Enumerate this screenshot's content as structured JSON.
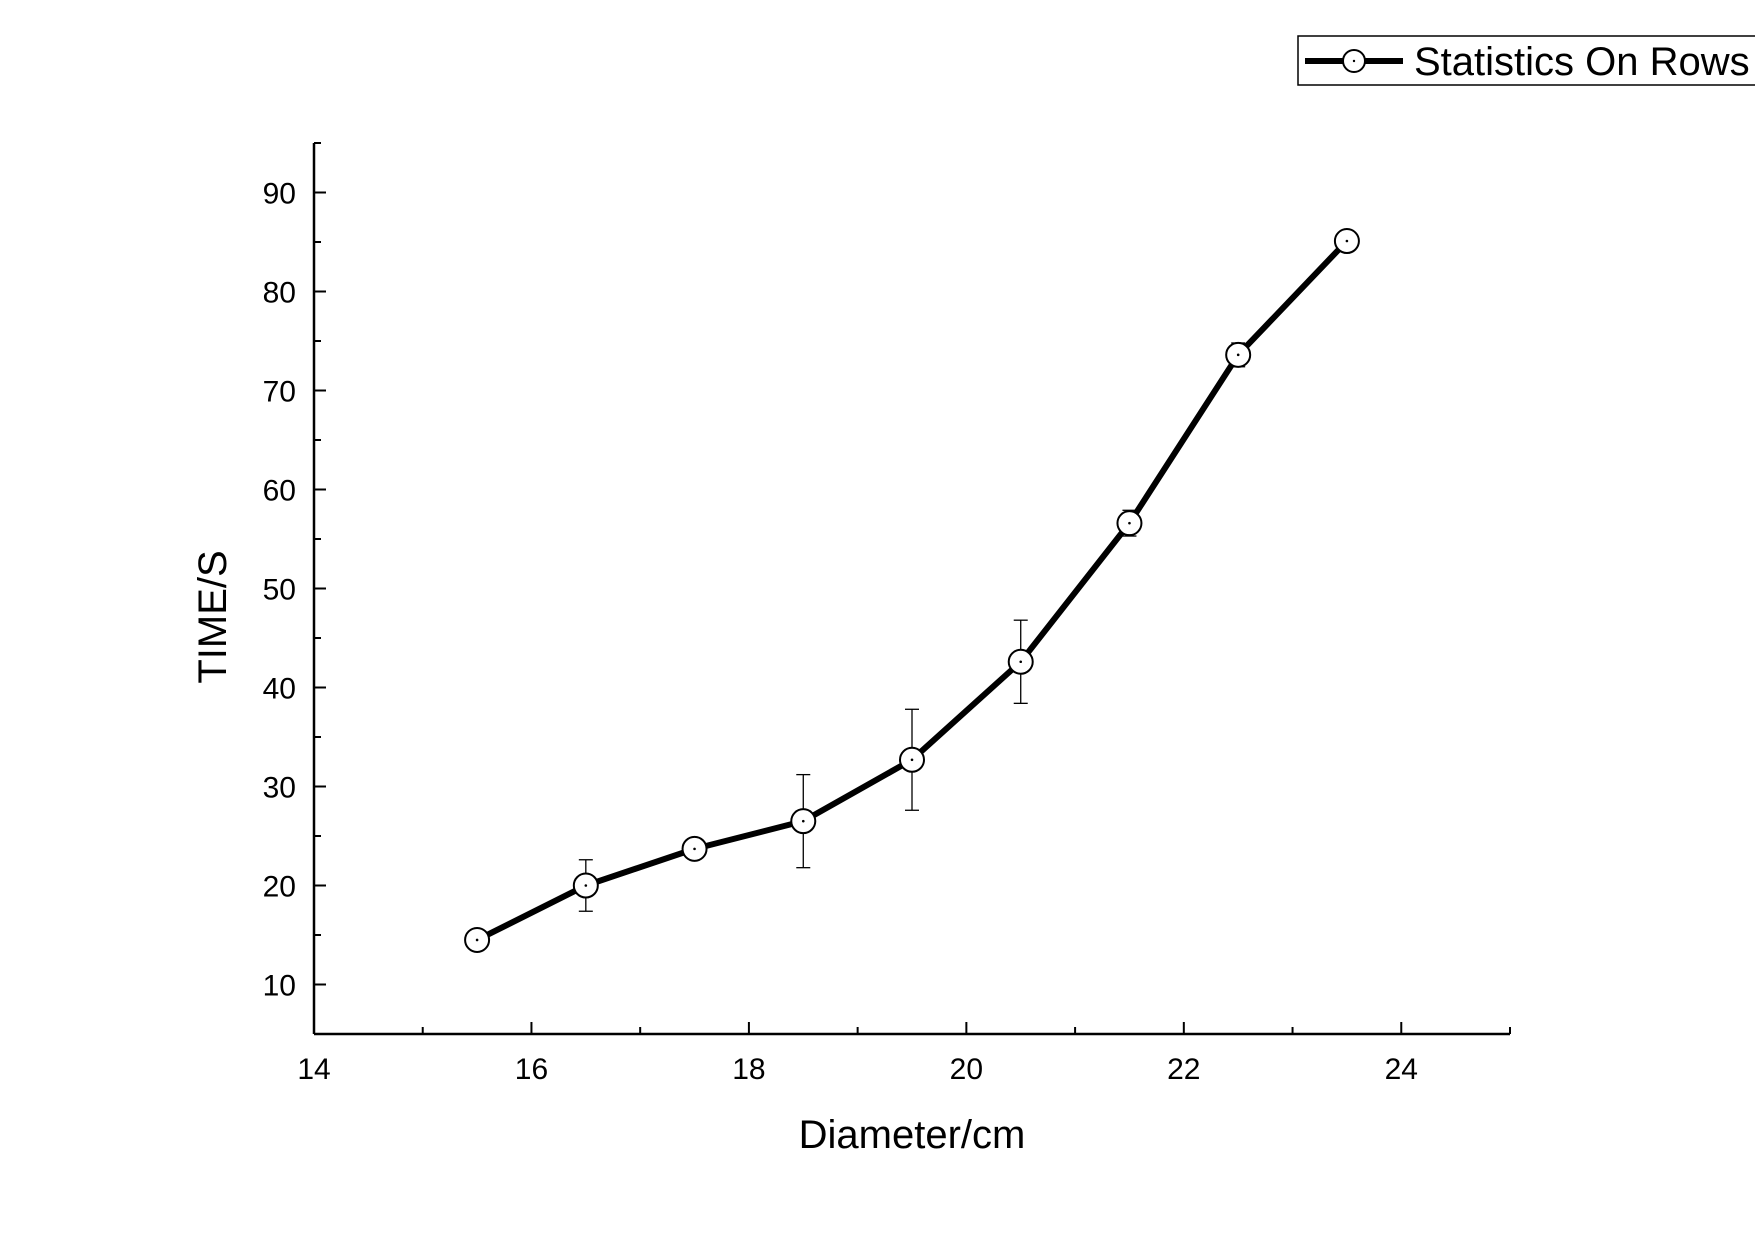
{
  "chart_data": {
    "type": "line",
    "xlabel": "Diameter/cm",
    "ylabel": "TIME/S",
    "xlim": [
      14,
      25
    ],
    "ylim": [
      5,
      95
    ],
    "x_ticks": [
      14,
      16,
      18,
      20,
      22,
      24
    ],
    "y_ticks": [
      10,
      20,
      30,
      40,
      50,
      60,
      70,
      80,
      90
    ],
    "grid": false,
    "legend": {
      "position": "top-right"
    },
    "series": [
      {
        "name": "Statistics On Rows",
        "x": [
          15.5,
          16.5,
          17.5,
          18.5,
          19.5,
          20.5,
          21.5,
          22.5,
          23.5
        ],
        "y": [
          14.5,
          20.0,
          23.7,
          26.5,
          32.7,
          42.6,
          56.6,
          73.6,
          85.1
        ],
        "error": [
          0.7,
          2.6,
          0.9,
          4.7,
          5.1,
          4.2,
          1.3,
          1.2,
          0.6
        ]
      }
    ],
    "colors": {
      "line": "#000000",
      "marker_fill": "#ffffff"
    }
  }
}
